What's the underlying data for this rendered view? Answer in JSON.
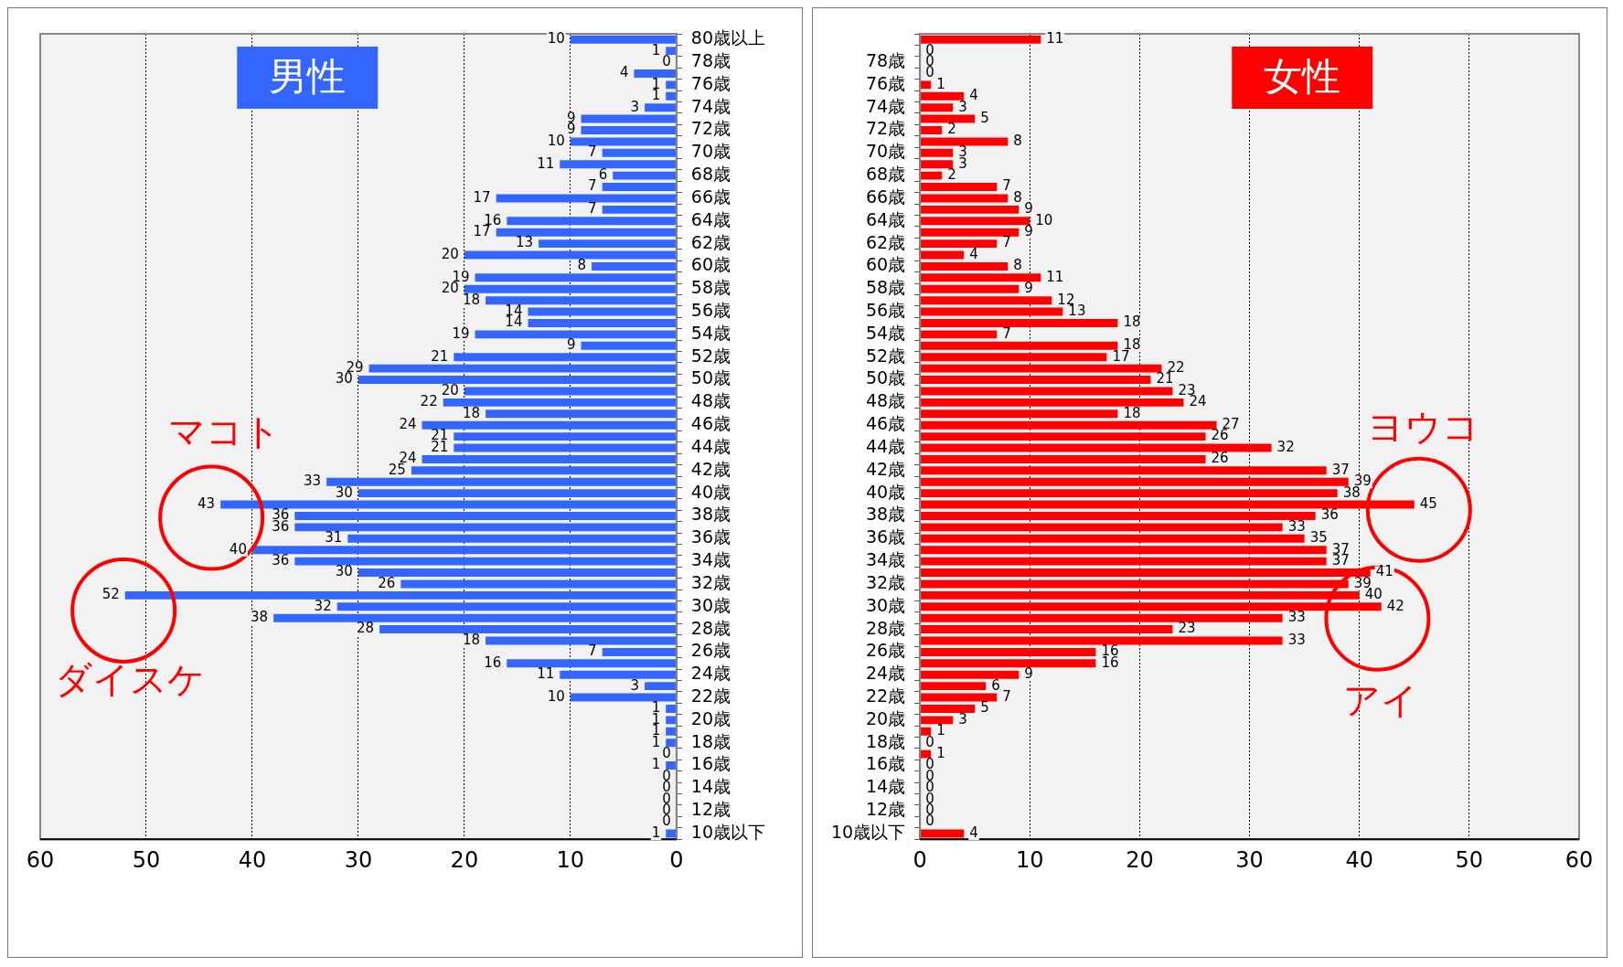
{
  "chart_data": [
    {
      "type": "bar",
      "orientation": "horizontal",
      "title": "男性",
      "categories": [
        "80歳以上",
        null,
        "78歳",
        null,
        "76歳",
        null,
        "74歳",
        null,
        "72歳",
        null,
        "70歳",
        null,
        "68歳",
        null,
        "66歳",
        null,
        "64歳",
        null,
        "62歳",
        null,
        "60歳",
        null,
        "58歳",
        null,
        "56歳",
        null,
        "54歳",
        null,
        "52歳",
        null,
        "50歳",
        null,
        "48歳",
        null,
        "46歳",
        null,
        "44歳",
        null,
        "42歳",
        null,
        "40歳",
        null,
        "38歳",
        null,
        "36歳",
        null,
        "34歳",
        null,
        "32歳",
        null,
        "30歳",
        null,
        "28歳",
        null,
        "26歳",
        null,
        "24歳",
        null,
        "22歳",
        null,
        "20歳",
        null,
        "18歳",
        null,
        "16歳",
        null,
        "14歳",
        null,
        "12歳",
        null,
        "10歳以下"
      ],
      "series": [
        {
          "color": "#3366ff",
          "values": [
            10,
            1,
            0,
            4,
            1,
            1,
            3,
            9,
            9,
            10,
            7,
            11,
            6,
            7,
            17,
            7,
            16,
            17,
            13,
            20,
            8,
            19,
            20,
            18,
            14,
            14,
            19,
            9,
            21,
            29,
            30,
            20,
            22,
            18,
            24,
            21,
            21,
            24,
            25,
            33,
            30,
            43,
            36,
            36,
            31,
            40,
            36,
            30,
            26,
            52,
            32,
            38,
            28,
            18,
            7,
            16,
            11,
            3,
            10,
            1,
            1,
            1,
            1,
            0,
            1,
            0,
            0,
            0,
            0,
            0,
            1
          ]
        }
      ],
      "xlim": [
        60,
        0
      ],
      "xticks": [
        60,
        50,
        40,
        30,
        20,
        10,
        0
      ],
      "grid": "x",
      "data_labels": true,
      "annotations": [
        "マコト",
        "ダイスケ"
      ]
    },
    {
      "type": "bar",
      "orientation": "horizontal",
      "title": "女性",
      "categories": [
        null,
        null,
        "78歳",
        null,
        "76歳",
        null,
        "74歳",
        null,
        "72歳",
        null,
        "70歳",
        null,
        "68歳",
        null,
        "66歳",
        null,
        "64歳",
        null,
        "62歳",
        null,
        "60歳",
        null,
        "58歳",
        null,
        "56歳",
        null,
        "54歳",
        null,
        "52歳",
        null,
        "50歳",
        null,
        "48歳",
        null,
        "46歳",
        null,
        "44歳",
        null,
        "42歳",
        null,
        "40歳",
        null,
        "38歳",
        null,
        "36歳",
        null,
        "34歳",
        null,
        "32歳",
        null,
        "30歳",
        null,
        "28歳",
        null,
        "26歳",
        null,
        "24歳",
        null,
        "22歳",
        null,
        "20歳",
        null,
        "18歳",
        null,
        "16歳",
        null,
        "14歳",
        null,
        "12歳",
        null,
        "10歳以下"
      ],
      "series": [
        {
          "color": "#ff0000",
          "values": [
            11,
            0,
            0,
            0,
            1,
            4,
            3,
            5,
            2,
            8,
            3,
            3,
            2,
            7,
            8,
            9,
            10,
            9,
            7,
            4,
            8,
            11,
            9,
            12,
            13,
            18,
            7,
            18,
            17,
            22,
            21,
            23,
            24,
            18,
            27,
            26,
            32,
            26,
            37,
            39,
            38,
            45,
            36,
            33,
            35,
            37,
            37,
            41,
            39,
            40,
            42,
            33,
            23,
            33,
            16,
            16,
            9,
            6,
            7,
            5,
            3,
            1,
            0,
            1,
            0,
            0,
            0,
            0,
            0,
            0,
            4
          ]
        }
      ],
      "xlim": [
        0,
        60
      ],
      "xticks": [
        0,
        10,
        20,
        30,
        40,
        50,
        60
      ],
      "grid": "x",
      "data_labels": true,
      "annotations": [
        "ヨウコ",
        "アイ"
      ]
    }
  ]
}
